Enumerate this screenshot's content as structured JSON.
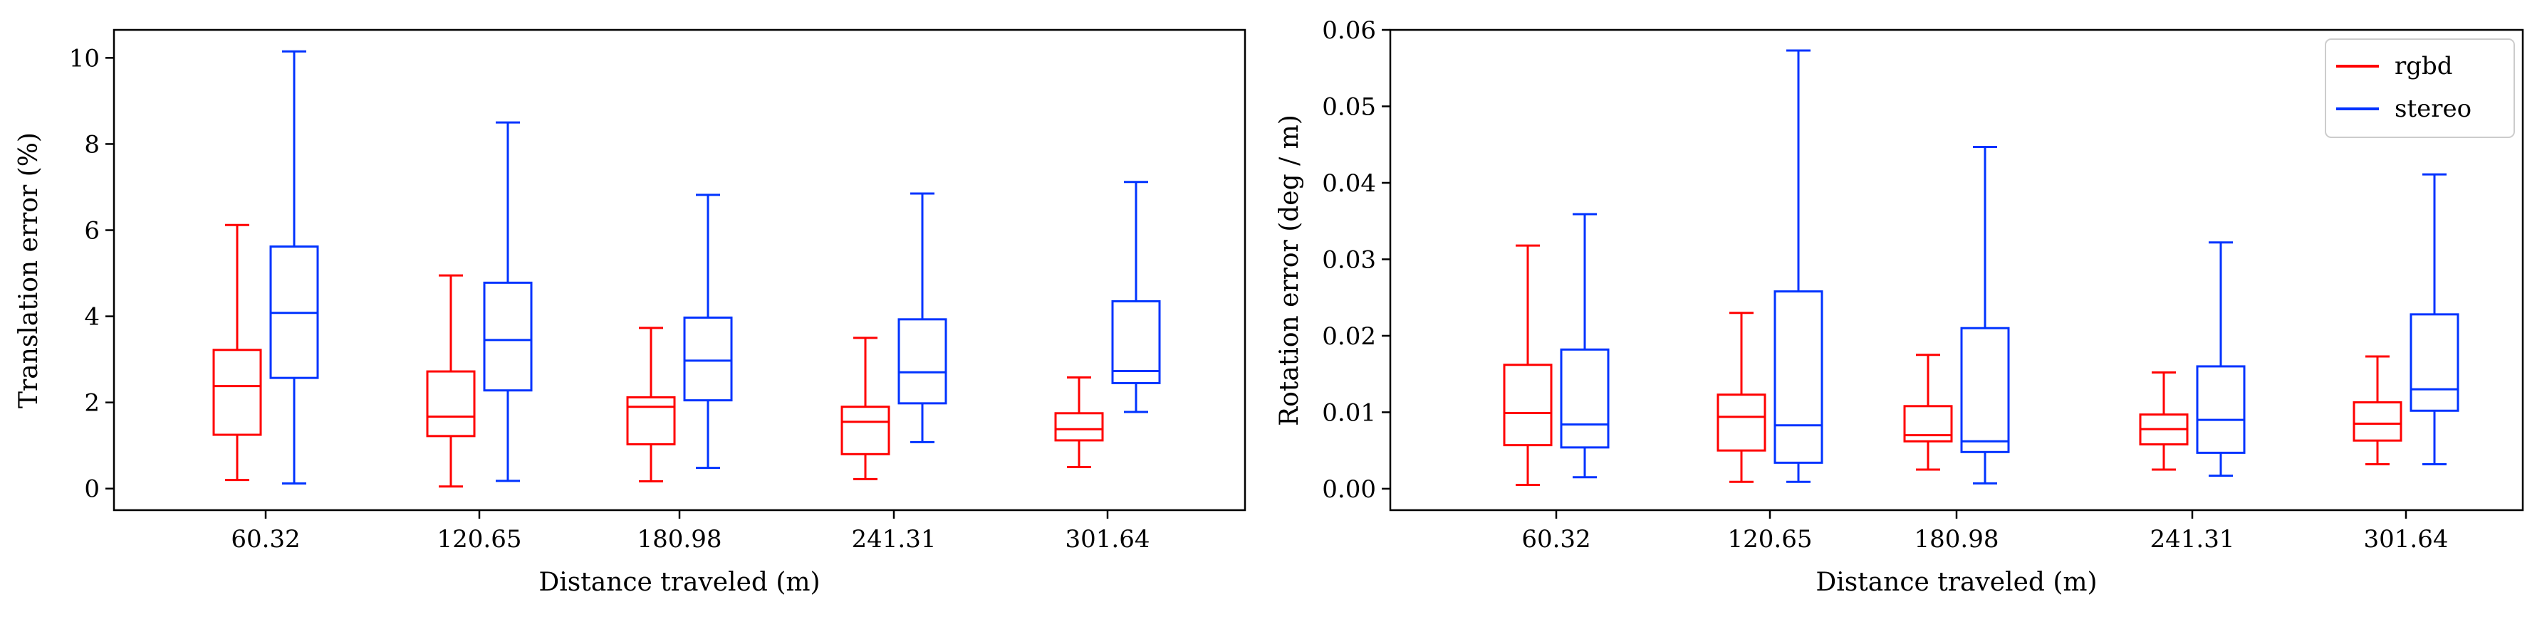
{
  "colors": {
    "rgbd": "#ff0000",
    "stereo": "#0033ff",
    "axis": "#000000"
  },
  "chart_data": [
    {
      "type": "boxplot",
      "xlabel": "Distance traveled (m)",
      "ylabel": "Translation error (%)",
      "ylim": [
        -0.5,
        10.65
      ],
      "yticks": [
        0,
        2,
        4,
        6,
        8,
        10
      ],
      "categories": [
        "60.32",
        "120.65",
        "180.98",
        "241.31",
        "301.64"
      ],
      "series": [
        {
          "name": "rgbd",
          "boxes": [
            {
              "whislo": 0.2,
              "q1": 1.25,
              "med": 2.38,
              "q3": 3.22,
              "whishi": 6.12
            },
            {
              "whislo": 0.05,
              "q1": 1.22,
              "med": 1.67,
              "q3": 2.72,
              "whishi": 4.95
            },
            {
              "whislo": 0.17,
              "q1": 1.03,
              "med": 1.9,
              "q3": 2.12,
              "whishi": 3.73
            },
            {
              "whislo": 0.22,
              "q1": 0.8,
              "med": 1.55,
              "q3": 1.9,
              "whishi": 3.5
            },
            {
              "whislo": 0.5,
              "q1": 1.12,
              "med": 1.38,
              "q3": 1.75,
              "whishi": 2.58
            }
          ]
        },
        {
          "name": "stereo",
          "boxes": [
            {
              "whislo": 0.12,
              "q1": 2.57,
              "med": 4.08,
              "q3": 5.62,
              "whishi": 10.15
            },
            {
              "whislo": 0.18,
              "q1": 2.28,
              "med": 3.45,
              "q3": 4.78,
              "whishi": 8.5
            },
            {
              "whislo": 0.48,
              "q1": 2.05,
              "med": 2.97,
              "q3": 3.97,
              "whishi": 6.82
            },
            {
              "whislo": 1.08,
              "q1": 1.98,
              "med": 2.7,
              "q3": 3.93,
              "whishi": 6.85
            },
            {
              "whislo": 1.78,
              "q1": 2.45,
              "med": 2.73,
              "q3": 4.35,
              "whishi": 7.12
            }
          ]
        }
      ]
    },
    {
      "type": "boxplot",
      "xlabel": "Distance traveled (m)",
      "ylabel": "Rotation error (deg / m)",
      "ylim": [
        -0.0028,
        0.06
      ],
      "yticks": [
        "0.00",
        "0.01",
        "0.02",
        "0.03",
        "0.04",
        "0.05",
        "0.06"
      ],
      "categories": [
        "60.32",
        "120.65",
        "180.98",
        "241.31",
        "301.64"
      ],
      "legend": {
        "position": "top-right",
        "entries": [
          "rgbd",
          "stereo"
        ]
      },
      "series": [
        {
          "name": "rgbd",
          "boxes": [
            {
              "whislo": 0.0005,
              "q1": 0.0057,
              "med": 0.0099,
              "q3": 0.0162,
              "whishi": 0.0318
            },
            {
              "whislo": 0.0009,
              "q1": 0.005,
              "med": 0.0094,
              "q3": 0.0123,
              "whishi": 0.023
            },
            {
              "whislo": 0.0025,
              "q1": 0.0062,
              "med": 0.007,
              "q3": 0.0108,
              "whishi": 0.0175
            },
            {
              "whislo": 0.0025,
              "q1": 0.0058,
              "med": 0.0078,
              "q3": 0.0097,
              "whishi": 0.0152
            },
            {
              "whislo": 0.0032,
              "q1": 0.0063,
              "med": 0.0085,
              "q3": 0.0113,
              "whishi": 0.0173
            }
          ]
        },
        {
          "name": "stereo",
          "boxes": [
            {
              "whislo": 0.0015,
              "q1": 0.0054,
              "med": 0.0084,
              "q3": 0.0182,
              "whishi": 0.0359
            },
            {
              "whislo": 0.0009,
              "q1": 0.0034,
              "med": 0.0083,
              "q3": 0.0258,
              "whishi": 0.0573
            },
            {
              "whislo": 0.0007,
              "q1": 0.0048,
              "med": 0.0062,
              "q3": 0.021,
              "whishi": 0.0447
            },
            {
              "whislo": 0.0017,
              "q1": 0.0047,
              "med": 0.009,
              "q3": 0.016,
              "whishi": 0.0322
            },
            {
              "whislo": 0.0032,
              "q1": 0.0102,
              "med": 0.013,
              "q3": 0.0228,
              "whishi": 0.0411
            }
          ]
        }
      ]
    }
  ]
}
